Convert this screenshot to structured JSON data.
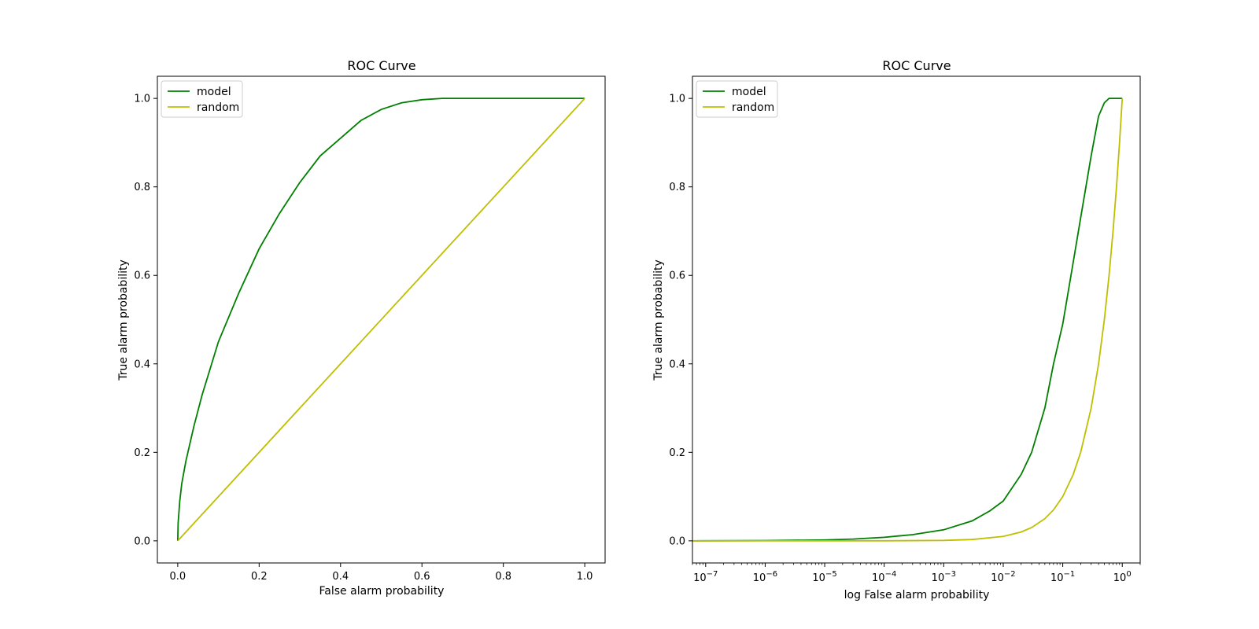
{
  "chart_data": [
    {
      "type": "line",
      "title": "ROC Curve",
      "xlabel": "False alarm probability",
      "ylabel": "True alarm probability",
      "xscale": "linear",
      "xlim": [
        -0.05,
        1.05
      ],
      "ylim": [
        -0.05,
        1.05
      ],
      "xticks": [
        0.0,
        0.2,
        0.4,
        0.6,
        0.8,
        1.0
      ],
      "xtick_labels": [
        "0.0",
        "0.2",
        "0.4",
        "0.6",
        "0.8",
        "1.0"
      ],
      "yticks": [
        0.0,
        0.2,
        0.4,
        0.6,
        0.8,
        1.0
      ],
      "ytick_labels": [
        "0.0",
        "0.2",
        "0.4",
        "0.6",
        "0.8",
        "1.0"
      ],
      "grid": false,
      "legend": "upper-left",
      "series": [
        {
          "name": "model",
          "color": "#008000",
          "x": [
            0,
            0.001,
            0.005,
            0.01,
            0.02,
            0.04,
            0.06,
            0.08,
            0.1,
            0.15,
            0.2,
            0.25,
            0.3,
            0.35,
            0.4,
            0.45,
            0.5,
            0.55,
            0.6,
            0.65,
            0.7,
            1.0
          ],
          "y": [
            0,
            0.04,
            0.09,
            0.13,
            0.18,
            0.26,
            0.33,
            0.39,
            0.45,
            0.56,
            0.66,
            0.74,
            0.81,
            0.87,
            0.91,
            0.95,
            0.975,
            0.99,
            0.997,
            1.0,
            1.0,
            1.0
          ]
        },
        {
          "name": "random",
          "color": "#bfbf00",
          "x": [
            0,
            1.0
          ],
          "y": [
            0,
            1.0
          ]
        }
      ]
    },
    {
      "type": "line",
      "title": "ROC Curve",
      "xlabel": "log False alarm probability",
      "ylabel": "True alarm probability",
      "xscale": "log",
      "xlim": [
        6e-08,
        2
      ],
      "ylim": [
        -0.05,
        1.05
      ],
      "xticks": [
        1e-07,
        1e-06,
        1e-05,
        0.0001,
        0.001,
        0.01,
        0.1,
        1
      ],
      "xtick_labels": [
        {
          "base": "10",
          "exp": "−7"
        },
        {
          "base": "10",
          "exp": "−6"
        },
        {
          "base": "10",
          "exp": "−5"
        },
        {
          "base": "10",
          "exp": "−4"
        },
        {
          "base": "10",
          "exp": "−3"
        },
        {
          "base": "10",
          "exp": "−2"
        },
        {
          "base": "10",
          "exp": "−1"
        },
        {
          "base": "10",
          "exp": "0"
        }
      ],
      "yticks": [
        0.0,
        0.2,
        0.4,
        0.6,
        0.8,
        1.0
      ],
      "ytick_labels": [
        "0.0",
        "0.2",
        "0.4",
        "0.6",
        "0.8",
        "1.0"
      ],
      "grid": false,
      "legend": "upper-left",
      "series": [
        {
          "name": "model",
          "color": "#008000",
          "x": [
            6e-08,
            1e-06,
            1e-05,
            3e-05,
            0.0001,
            0.0003,
            0.001,
            0.003,
            0.006,
            0.01,
            0.02,
            0.03,
            0.05,
            0.07,
            0.1,
            0.15,
            0.2,
            0.3,
            0.4,
            0.5,
            0.6,
            0.7,
            1.0
          ],
          "y": [
            0,
            0.0005,
            0.002,
            0.004,
            0.008,
            0.014,
            0.025,
            0.045,
            0.068,
            0.09,
            0.15,
            0.2,
            0.3,
            0.4,
            0.49,
            0.63,
            0.73,
            0.87,
            0.96,
            0.99,
            1.0,
            1.0,
            1.0
          ]
        },
        {
          "name": "random",
          "color": "#bfbf00",
          "x": [
            6e-08,
            1e-05,
            0.0001,
            0.001,
            0.003,
            0.01,
            0.02,
            0.03,
            0.05,
            0.07,
            0.1,
            0.15,
            0.2,
            0.3,
            0.4,
            0.5,
            0.6,
            0.7,
            0.8,
            0.9,
            1.0
          ],
          "y": [
            0,
            0,
            0.0001,
            0.001,
            0.003,
            0.01,
            0.02,
            0.03,
            0.05,
            0.07,
            0.1,
            0.15,
            0.2,
            0.3,
            0.4,
            0.5,
            0.6,
            0.7,
            0.8,
            0.9,
            1.0
          ]
        }
      ]
    }
  ]
}
